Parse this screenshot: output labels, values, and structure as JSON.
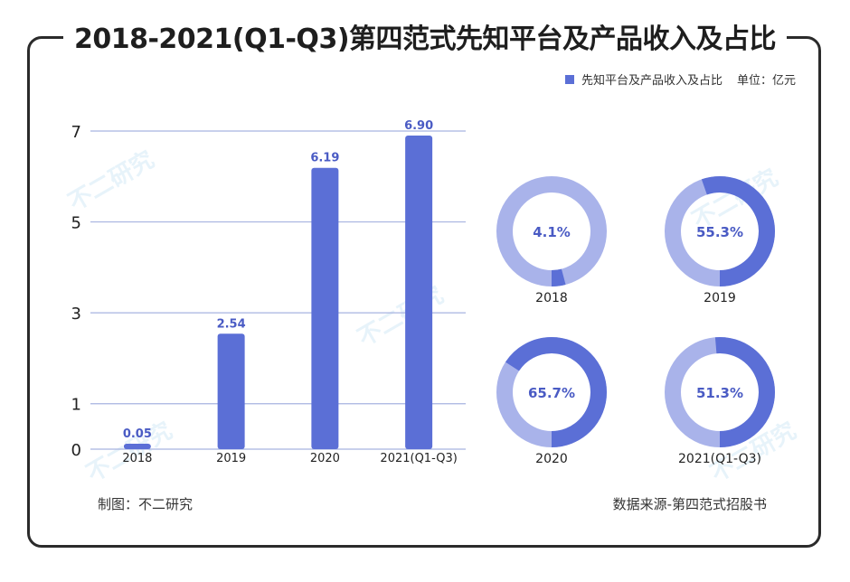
{
  "title": "2018-2021(Q1-Q3)第四范式先知平台及产品收入及占比",
  "legend": {
    "series_label": "先知平台及产品收入及占比",
    "unit": "单位：亿元"
  },
  "footer": {
    "left": "制图：不二研究",
    "right": "数据来源-第四范式招股书"
  },
  "watermark": "不二研究",
  "colors": {
    "bar": "#5b6fd6",
    "donut_dark": "#5b6fd6",
    "donut_light": "#a9b3ea",
    "grid": "#a7b3e0"
  },
  "chart_data": [
    {
      "type": "bar",
      "categories": [
        "2018",
        "2019",
        "2020",
        "2021(Q1-Q3)"
      ],
      "series": [
        {
          "name": "先知平台及产品收入及占比",
          "values": [
            0.05,
            2.54,
            6.19,
            6.9
          ]
        }
      ],
      "value_labels": [
        "0.05",
        "2.54",
        "6.19",
        "6.90"
      ],
      "yticks": [
        0,
        1,
        3,
        5,
        7
      ],
      "ytick_labels": [
        "0",
        "1",
        "3",
        "5",
        "7"
      ],
      "ylim": [
        0,
        7
      ],
      "grid": true
    },
    {
      "type": "pie",
      "variant": "donut",
      "items": [
        {
          "year": "2018",
          "share": 4.1,
          "label": "4.1%"
        },
        {
          "year": "2019",
          "share": 55.3,
          "label": "55.3%"
        },
        {
          "year": "2020",
          "share": 65.7,
          "label": "65.7%"
        },
        {
          "year": "2021(Q1-Q3)",
          "share": 51.3,
          "label": "51.3%"
        }
      ]
    }
  ]
}
